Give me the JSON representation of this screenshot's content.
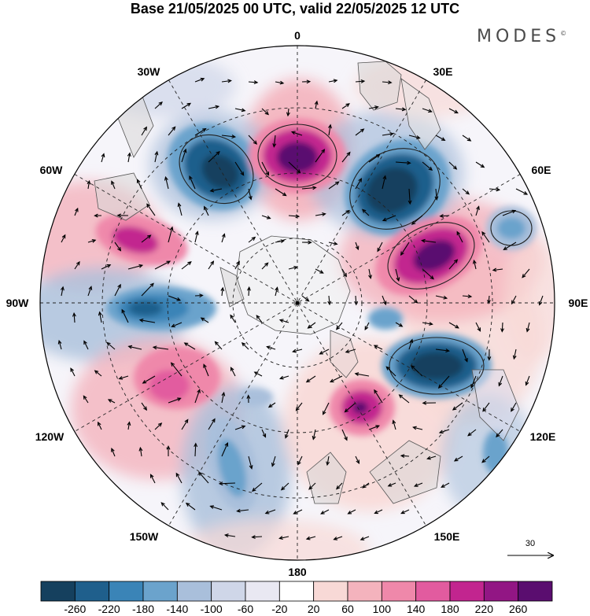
{
  "title": "Base 21/05/2025 00 UTC, valid 22/05/2025 12 UTC",
  "brand": "MODES",
  "brand_mark": "©",
  "longitude_labels": {
    "lon_0": "0",
    "lon_30e": "30E",
    "lon_60e": "60E",
    "lon_90e": "90E",
    "lon_120e": "120E",
    "lon_150e": "150E",
    "lon_180": "180",
    "lon_150w": "150W",
    "lon_120w": "120W",
    "lon_90w": "90W",
    "lon_60w": "60W",
    "lon_30w": "30W"
  },
  "reference_vector_label": "30",
  "colorbar": {
    "colors": [
      "#15405e",
      "#1f5f8c",
      "#3a84b7",
      "#6ba3cc",
      "#a9bfdb",
      "#cfd6e8",
      "#e9e8f2",
      "#ffffff",
      "#f8d9d6",
      "#f4b3bd",
      "#ef88aa",
      "#e25b9f",
      "#c2258f",
      "#921684",
      "#5a0d6f"
    ],
    "labels": [
      "-260",
      "-220",
      "-180",
      "-140",
      "-100",
      "-60",
      "-20",
      "20",
      "60",
      "100",
      "140",
      "180",
      "220",
      "260"
    ]
  }
}
